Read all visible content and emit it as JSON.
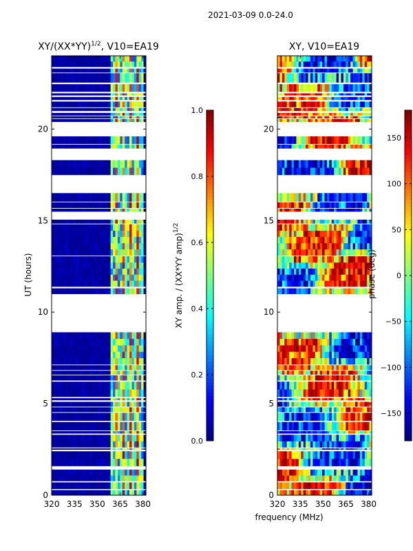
{
  "suptitle": "2021-03-09 0.0-24.0",
  "common_xlabel": "frequency (MHz)",
  "colors": {
    "background": "#ffffff",
    "flagged": "#ffffff",
    "axis": "#000000",
    "jet": [
      "#00007f",
      "#0000ff",
      "#007fff",
      "#00ffff",
      "#7fff7f",
      "#ffff00",
      "#ff7f00",
      "#ff0000",
      "#7f0000"
    ]
  },
  "chart_data": [
    {
      "id": "amp",
      "type": "heatmap",
      "title_prefix": "XY/(XX*YY)",
      "title_sup": "1/2",
      "title_suffix": ", V10=EA19",
      "xlabel": "",
      "ylabel": "UT (hours)",
      "xlim": [
        320,
        382
      ],
      "ylim": [
        0,
        24
      ],
      "xticks": [
        320,
        335,
        350,
        365,
        380
      ],
      "yticks": [
        0,
        5,
        10,
        15,
        20
      ],
      "colorbar": {
        "label_prefix": "XY amp. / (XX*YY amp)",
        "label_sup": "1/2",
        "vmin": 0.0,
        "vmax": 1.0,
        "ticks": [
          0.0,
          0.2,
          0.4,
          0.6,
          0.8,
          1.0
        ],
        "tick_labels": [
          "0.0",
          "0.2",
          "0.4",
          "0.6",
          "0.8",
          "1.0"
        ]
      },
      "base_value": 0.02,
      "active_band": [
        359,
        380
      ],
      "active_value_range": [
        0.2,
        0.65
      ],
      "rfi_channels": [
        362.5,
        367,
        371.5,
        376
      ],
      "data_segments_hours": [
        [
          0.0,
          0.28
        ],
        [
          0.35,
          0.7
        ],
        [
          0.78,
          1.4
        ],
        [
          1.6,
          2.4
        ],
        [
          2.5,
          2.56
        ],
        [
          2.62,
          3.3
        ],
        [
          3.38,
          3.5
        ],
        [
          3.55,
          4.0
        ],
        [
          4.08,
          4.5
        ],
        [
          4.55,
          4.8
        ],
        [
          4.85,
          5.1
        ],
        [
          5.2,
          5.3
        ],
        [
          5.38,
          6.2
        ],
        [
          6.28,
          6.55
        ],
        [
          6.6,
          6.8
        ],
        [
          6.85,
          7.1
        ],
        [
          7.15,
          8.9
        ],
        [
          11.0,
          11.3
        ],
        [
          11.4,
          13.05
        ],
        [
          13.1,
          14.8
        ],
        [
          14.85,
          15.05
        ],
        [
          15.5,
          15.65
        ],
        [
          15.7,
          16.0
        ],
        [
          16.05,
          16.5
        ],
        [
          17.5,
          18.3
        ],
        [
          18.95,
          19.15
        ],
        [
          19.2,
          19.6
        ],
        [
          20.4,
          20.55
        ],
        [
          20.6,
          20.7
        ],
        [
          20.75,
          20.88
        ],
        [
          21.0,
          21.15
        ],
        [
          21.2,
          21.5
        ],
        [
          21.6,
          21.75
        ],
        [
          21.85,
          21.95
        ],
        [
          22.05,
          22.45
        ],
        [
          22.55,
          23.05
        ],
        [
          23.1,
          23.3
        ],
        [
          23.4,
          24.0
        ]
      ]
    },
    {
      "id": "phase",
      "type": "heatmap",
      "title": "XY, V10=EA19",
      "xlabel": "frequency (MHz)",
      "ylabel": "",
      "xlim": [
        320,
        382
      ],
      "ylim": [
        0,
        24
      ],
      "xticks": [
        320,
        335,
        350,
        365,
        380
      ],
      "yticks": [
        0,
        5,
        10,
        15,
        20
      ],
      "colorbar": {
        "label": "phase (deg)",
        "vmin": -180,
        "vmax": 180,
        "ticks": [
          -150,
          -100,
          -50,
          0,
          50,
          100,
          150
        ],
        "tick_labels": [
          "−150",
          "−100",
          "−50",
          "0",
          "50",
          "100",
          "150"
        ]
      },
      "value_range_deg": [
        -180,
        180
      ],
      "data_segments_hours": [
        [
          0.0,
          0.28
        ],
        [
          0.35,
          0.7
        ],
        [
          0.78,
          1.4
        ],
        [
          1.6,
          2.4
        ],
        [
          2.5,
          2.56
        ],
        [
          2.62,
          3.3
        ],
        [
          3.38,
          3.5
        ],
        [
          3.55,
          4.0
        ],
        [
          4.08,
          4.5
        ],
        [
          4.55,
          4.8
        ],
        [
          4.85,
          5.1
        ],
        [
          5.2,
          5.3
        ],
        [
          5.38,
          6.2
        ],
        [
          6.28,
          6.55
        ],
        [
          6.6,
          6.8
        ],
        [
          6.85,
          7.1
        ],
        [
          7.15,
          8.9
        ],
        [
          11.0,
          11.3
        ],
        [
          11.4,
          13.05
        ],
        [
          13.1,
          14.8
        ],
        [
          14.85,
          15.05
        ],
        [
          15.5,
          15.65
        ],
        [
          15.7,
          16.0
        ],
        [
          16.05,
          16.5
        ],
        [
          17.5,
          18.3
        ],
        [
          18.95,
          19.15
        ],
        [
          19.2,
          19.6
        ],
        [
          20.4,
          20.55
        ],
        [
          20.6,
          20.7
        ],
        [
          20.75,
          20.88
        ],
        [
          21.0,
          21.15
        ],
        [
          21.2,
          21.5
        ],
        [
          21.6,
          21.75
        ],
        [
          21.85,
          21.95
        ],
        [
          22.05,
          22.45
        ],
        [
          22.55,
          23.05
        ],
        [
          23.1,
          23.3
        ],
        [
          23.4,
          24.0
        ]
      ]
    }
  ]
}
